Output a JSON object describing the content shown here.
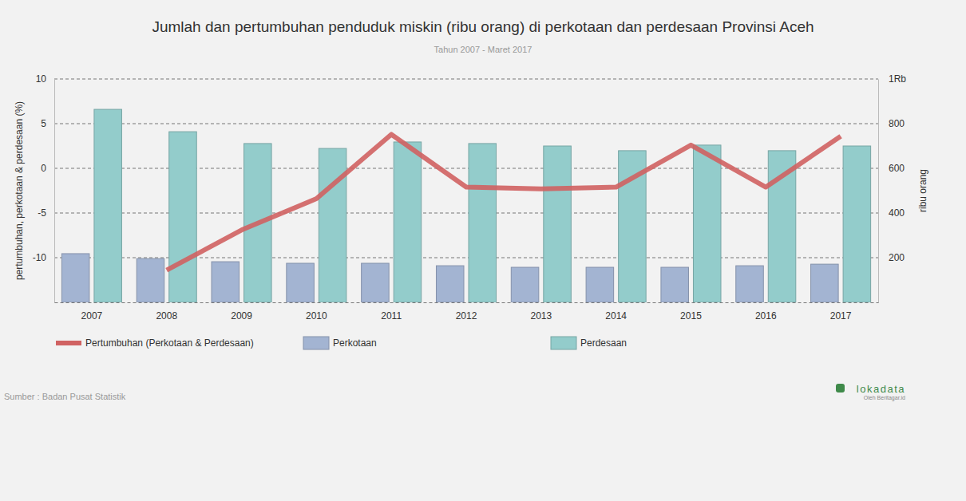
{
  "chart_data": {
    "type": "bar",
    "title": "Jumlah dan pertumbuhan penduduk miskin (ribu orang) di perkotaan dan perdesaan Provinsi Aceh",
    "subtitle": "Tahun 2007 - Maret 2017",
    "y_label": "pertumbuhan, perkotaan & perdesaan (%)",
    "y2_label": "ribu orang",
    "source": "Sumber : Badan Pusat Statistik",
    "annotations": [
      "lokadata",
      "Oleh Beritagar.id"
    ],
    "categories": [
      "2007",
      "2008",
      "2009",
      "2010",
      "2011",
      "2012",
      "2013",
      "2014",
      "2015",
      "2016",
      "2017"
    ],
    "series": [
      {
        "name": "Pertumbuhan (Perkotaan & Perdesaan)",
        "type": "line",
        "color": "#d06262",
        "axis": "y",
        "values": [
          null,
          -11.4,
          -6.9,
          -3.4,
          3.8,
          -2.1,
          -2.3,
          -2.1,
          2.6,
          -2.1,
          3.6
        ]
      },
      {
        "name": "Perkotaan",
        "type": "bar",
        "color": "#a3b4d2",
        "axis": "y2",
        "values": [
          218,
          196,
          182,
          175,
          175,
          164,
          157,
          157,
          157,
          164,
          171
        ]
      },
      {
        "name": "Perdesaan",
        "type": "bar",
        "color": "#93cccb",
        "axis": "y2",
        "values": [
          864,
          764,
          711,
          689,
          718,
          711,
          700,
          679,
          704,
          679,
          700
        ]
      }
    ],
    "ylim": [
      -15,
      10
    ],
    "yticks": [
      -10,
      -5,
      0,
      5,
      10
    ],
    "y2lim": [
      0,
      1000
    ],
    "y2ticks": [
      200,
      400,
      600,
      800,
      {
        "value": 1000,
        "label": "1Rb"
      }
    ],
    "grid": true,
    "legend": "bottom"
  }
}
